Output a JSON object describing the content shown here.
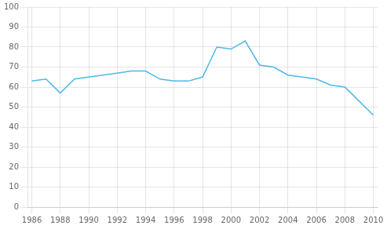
{
  "chart_data": {
    "type": "line",
    "x": [
      1986,
      1987,
      1988,
      1989,
      1990,
      1991,
      1992,
      1993,
      1994,
      1995,
      1996,
      1997,
      1998,
      1999,
      2000,
      2001,
      2002,
      2003,
      2004,
      2005,
      2006,
      2007,
      2008,
      2009,
      2010
    ],
    "values": [
      63,
      64,
      57,
      64,
      65,
      66,
      67,
      68,
      68,
      64,
      63,
      63,
      65,
      80,
      79,
      83,
      71,
      70,
      66,
      65,
      64,
      61,
      60,
      53,
      46
    ],
    "color": "#4db8e8",
    "xlim": [
      1985.7,
      2010.3
    ],
    "xticks": [
      1986,
      1988,
      1990,
      1992,
      1994,
      1996,
      1998,
      2000,
      2002,
      2004,
      2006,
      2008,
      2010
    ],
    "ylim": [
      0,
      100
    ],
    "yticks": [
      0,
      10,
      20,
      30,
      40,
      50,
      60,
      70,
      80,
      90,
      100
    ],
    "grid": true
  }
}
